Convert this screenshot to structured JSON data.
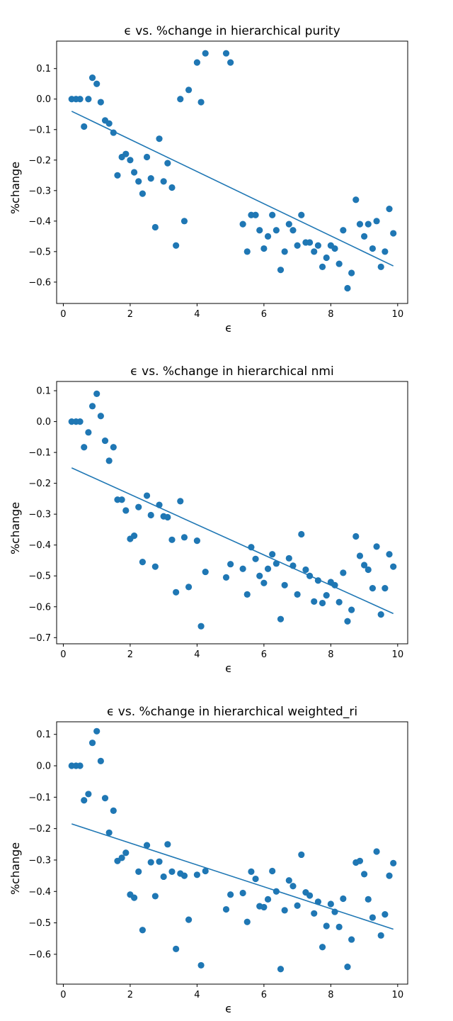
{
  "chart_data": [
    {
      "type": "scatter",
      "title": "ϵ  vs. %change  in hierarchical purity",
      "xlabel": "ϵ",
      "ylabel": "%change",
      "xlim": [
        -0.2,
        10.3
      ],
      "ylim": [
        -0.67,
        0.19
      ],
      "xticks": [
        0,
        2,
        4,
        6,
        8,
        10
      ],
      "yticks": [
        0.1,
        0.0,
        -0.1,
        -0.2,
        -0.3,
        -0.4,
        -0.5,
        -0.6
      ],
      "grid": false,
      "color": "#1f77b4",
      "x": [
        0.25,
        0.38,
        0.5,
        0.62,
        0.75,
        0.87,
        1.0,
        1.12,
        1.25,
        1.37,
        1.5,
        1.62,
        1.75,
        1.87,
        2.0,
        2.12,
        2.25,
        2.37,
        2.5,
        2.62,
        2.75,
        2.87,
        3.0,
        3.12,
        3.25,
        3.37,
        3.5,
        3.62,
        3.75,
        4.0,
        4.12,
        4.25,
        4.87,
        5.0,
        5.37,
        5.5,
        5.62,
        5.75,
        5.87,
        6.0,
        6.12,
        6.25,
        6.37,
        6.5,
        6.62,
        6.75,
        6.87,
        7.0,
        7.12,
        7.25,
        7.37,
        7.5,
        7.62,
        7.75,
        7.87,
        8.0,
        8.12,
        8.25,
        8.37,
        8.5,
        8.62,
        8.75,
        8.87,
        9.0,
        9.12,
        9.25,
        9.37,
        9.5,
        9.62,
        9.75,
        9.87
      ],
      "y": [
        0.0,
        0.0,
        0.0,
        -0.09,
        0.0,
        0.07,
        0.05,
        -0.01,
        -0.07,
        -0.08,
        -0.11,
        -0.25,
        -0.19,
        -0.18,
        -0.2,
        -0.24,
        -0.27,
        -0.31,
        -0.19,
        -0.26,
        -0.42,
        -0.13,
        -0.27,
        -0.21,
        -0.29,
        -0.48,
        0.0,
        -0.4,
        0.03,
        0.12,
        -0.01,
        0.15,
        0.15,
        0.12,
        -0.41,
        -0.5,
        -0.38,
        -0.38,
        -0.43,
        -0.49,
        -0.45,
        -0.38,
        -0.43,
        -0.56,
        -0.5,
        -0.41,
        -0.43,
        -0.48,
        -0.38,
        -0.47,
        -0.47,
        -0.5,
        -0.48,
        -0.55,
        -0.52,
        -0.48,
        -0.49,
        -0.54,
        -0.43,
        -0.62,
        -0.57,
        -0.33,
        -0.41,
        -0.45,
        -0.41,
        -0.49,
        -0.4,
        -0.55,
        -0.5,
        -0.36,
        -0.44
      ],
      "fit_line": {
        "x": [
          0.25,
          9.87
        ],
        "y": [
          -0.04,
          -0.547
        ]
      }
    },
    {
      "type": "scatter",
      "title": "ϵ  vs. %change in hierarchical nmi",
      "xlabel": "ϵ",
      "ylabel": "%change",
      "xlim": [
        -0.2,
        10.3
      ],
      "ylim": [
        -0.72,
        0.13
      ],
      "xticks": [
        0,
        2,
        4,
        6,
        8,
        10
      ],
      "yticks": [
        0.1,
        0.0,
        -0.1,
        -0.2,
        -0.3,
        -0.4,
        -0.5,
        -0.6,
        -0.7
      ],
      "grid": false,
      "color": "#1f77b4",
      "x": [
        0.25,
        0.38,
        0.5,
        0.62,
        0.75,
        0.87,
        1.0,
        1.12,
        1.25,
        1.37,
        1.5,
        1.62,
        1.75,
        1.87,
        2.0,
        2.12,
        2.25,
        2.37,
        2.5,
        2.62,
        2.75,
        2.87,
        3.0,
        3.12,
        3.25,
        3.37,
        3.5,
        3.62,
        3.75,
        4.0,
        4.12,
        4.25,
        4.87,
        5.0,
        5.37,
        5.5,
        5.62,
        5.75,
        5.87,
        6.0,
        6.12,
        6.25,
        6.37,
        6.5,
        6.62,
        6.75,
        6.87,
        7.0,
        7.12,
        7.25,
        7.37,
        7.5,
        7.62,
        7.75,
        7.87,
        8.0,
        8.12,
        8.25,
        8.37,
        8.5,
        8.62,
        8.75,
        8.87,
        9.0,
        9.12,
        9.25,
        9.37,
        9.5,
        9.62,
        9.75,
        9.87
      ],
      "y": [
        0.0,
        0.0,
        0.0,
        -0.083,
        -0.035,
        0.05,
        0.09,
        0.018,
        -0.062,
        -0.127,
        -0.083,
        -0.253,
        -0.253,
        -0.288,
        -0.38,
        -0.37,
        -0.277,
        -0.455,
        -0.24,
        -0.303,
        -0.47,
        -0.27,
        -0.307,
        -0.31,
        -0.383,
        -0.553,
        -0.258,
        -0.375,
        -0.536,
        -0.386,
        -0.663,
        -0.487,
        -0.505,
        -0.462,
        -0.477,
        -0.56,
        -0.407,
        -0.445,
        -0.5,
        -0.523,
        -0.477,
        -0.43,
        -0.46,
        -0.64,
        -0.53,
        -0.443,
        -0.467,
        -0.56,
        -0.365,
        -0.48,
        -0.5,
        -0.583,
        -0.515,
        -0.588,
        -0.563,
        -0.52,
        -0.53,
        -0.585,
        -0.49,
        -0.647,
        -0.61,
        -0.372,
        -0.435,
        -0.465,
        -0.48,
        -0.54,
        -0.405,
        -0.625,
        -0.54,
        -0.43,
        -0.47
      ],
      "fit_line": {
        "x": [
          0.25,
          9.87
        ],
        "y": [
          -0.15,
          -0.622
        ]
      }
    },
    {
      "type": "scatter",
      "title": "ϵ  vs. %change in hierarchical weighted_ri",
      "xlabel": "ϵ",
      "ylabel": "%change",
      "xlim": [
        -0.2,
        10.3
      ],
      "ylim": [
        -0.695,
        0.14
      ],
      "xticks": [
        0,
        2,
        4,
        6,
        8,
        10
      ],
      "yticks": [
        0.1,
        0.0,
        -0.1,
        -0.2,
        -0.3,
        -0.4,
        -0.5,
        -0.6
      ],
      "grid": false,
      "color": "#1f77b4",
      "x": [
        0.25,
        0.38,
        0.5,
        0.62,
        0.75,
        0.87,
        1.0,
        1.12,
        1.25,
        1.37,
        1.5,
        1.62,
        1.75,
        1.87,
        2.0,
        2.12,
        2.25,
        2.37,
        2.5,
        2.62,
        2.75,
        2.87,
        3.0,
        3.12,
        3.25,
        3.37,
        3.5,
        3.62,
        3.75,
        4.0,
        4.12,
        4.25,
        4.87,
        5.0,
        5.37,
        5.5,
        5.62,
        5.75,
        5.87,
        6.0,
        6.12,
        6.25,
        6.37,
        6.5,
        6.62,
        6.75,
        6.87,
        7.0,
        7.12,
        7.25,
        7.37,
        7.5,
        7.62,
        7.75,
        7.87,
        8.0,
        8.12,
        8.25,
        8.37,
        8.5,
        8.62,
        8.75,
        8.87,
        9.0,
        9.12,
        9.25,
        9.37,
        9.5,
        9.62,
        9.75,
        9.87
      ],
      "y": [
        0.0,
        0.0,
        0.0,
        -0.11,
        -0.09,
        0.073,
        0.11,
        0.015,
        -0.103,
        -0.213,
        -0.143,
        -0.303,
        -0.293,
        -0.277,
        -0.41,
        -0.42,
        -0.337,
        -0.523,
        -0.253,
        -0.307,
        -0.415,
        -0.305,
        -0.353,
        -0.25,
        -0.337,
        -0.583,
        -0.343,
        -0.35,
        -0.49,
        -0.347,
        -0.635,
        -0.335,
        -0.457,
        -0.41,
        -0.405,
        -0.497,
        -0.337,
        -0.36,
        -0.447,
        -0.45,
        -0.425,
        -0.335,
        -0.4,
        -0.647,
        -0.46,
        -0.365,
        -0.383,
        -0.445,
        -0.283,
        -0.403,
        -0.413,
        -0.47,
        -0.433,
        -0.577,
        -0.51,
        -0.44,
        -0.465,
        -0.513,
        -0.423,
        -0.64,
        -0.553,
        -0.308,
        -0.303,
        -0.345,
        -0.425,
        -0.483,
        -0.273,
        -0.54,
        -0.473,
        -0.35,
        -0.31
      ],
      "fit_line": {
        "x": [
          0.25,
          9.87
        ],
        "y": [
          -0.185,
          -0.52
        ]
      }
    }
  ]
}
